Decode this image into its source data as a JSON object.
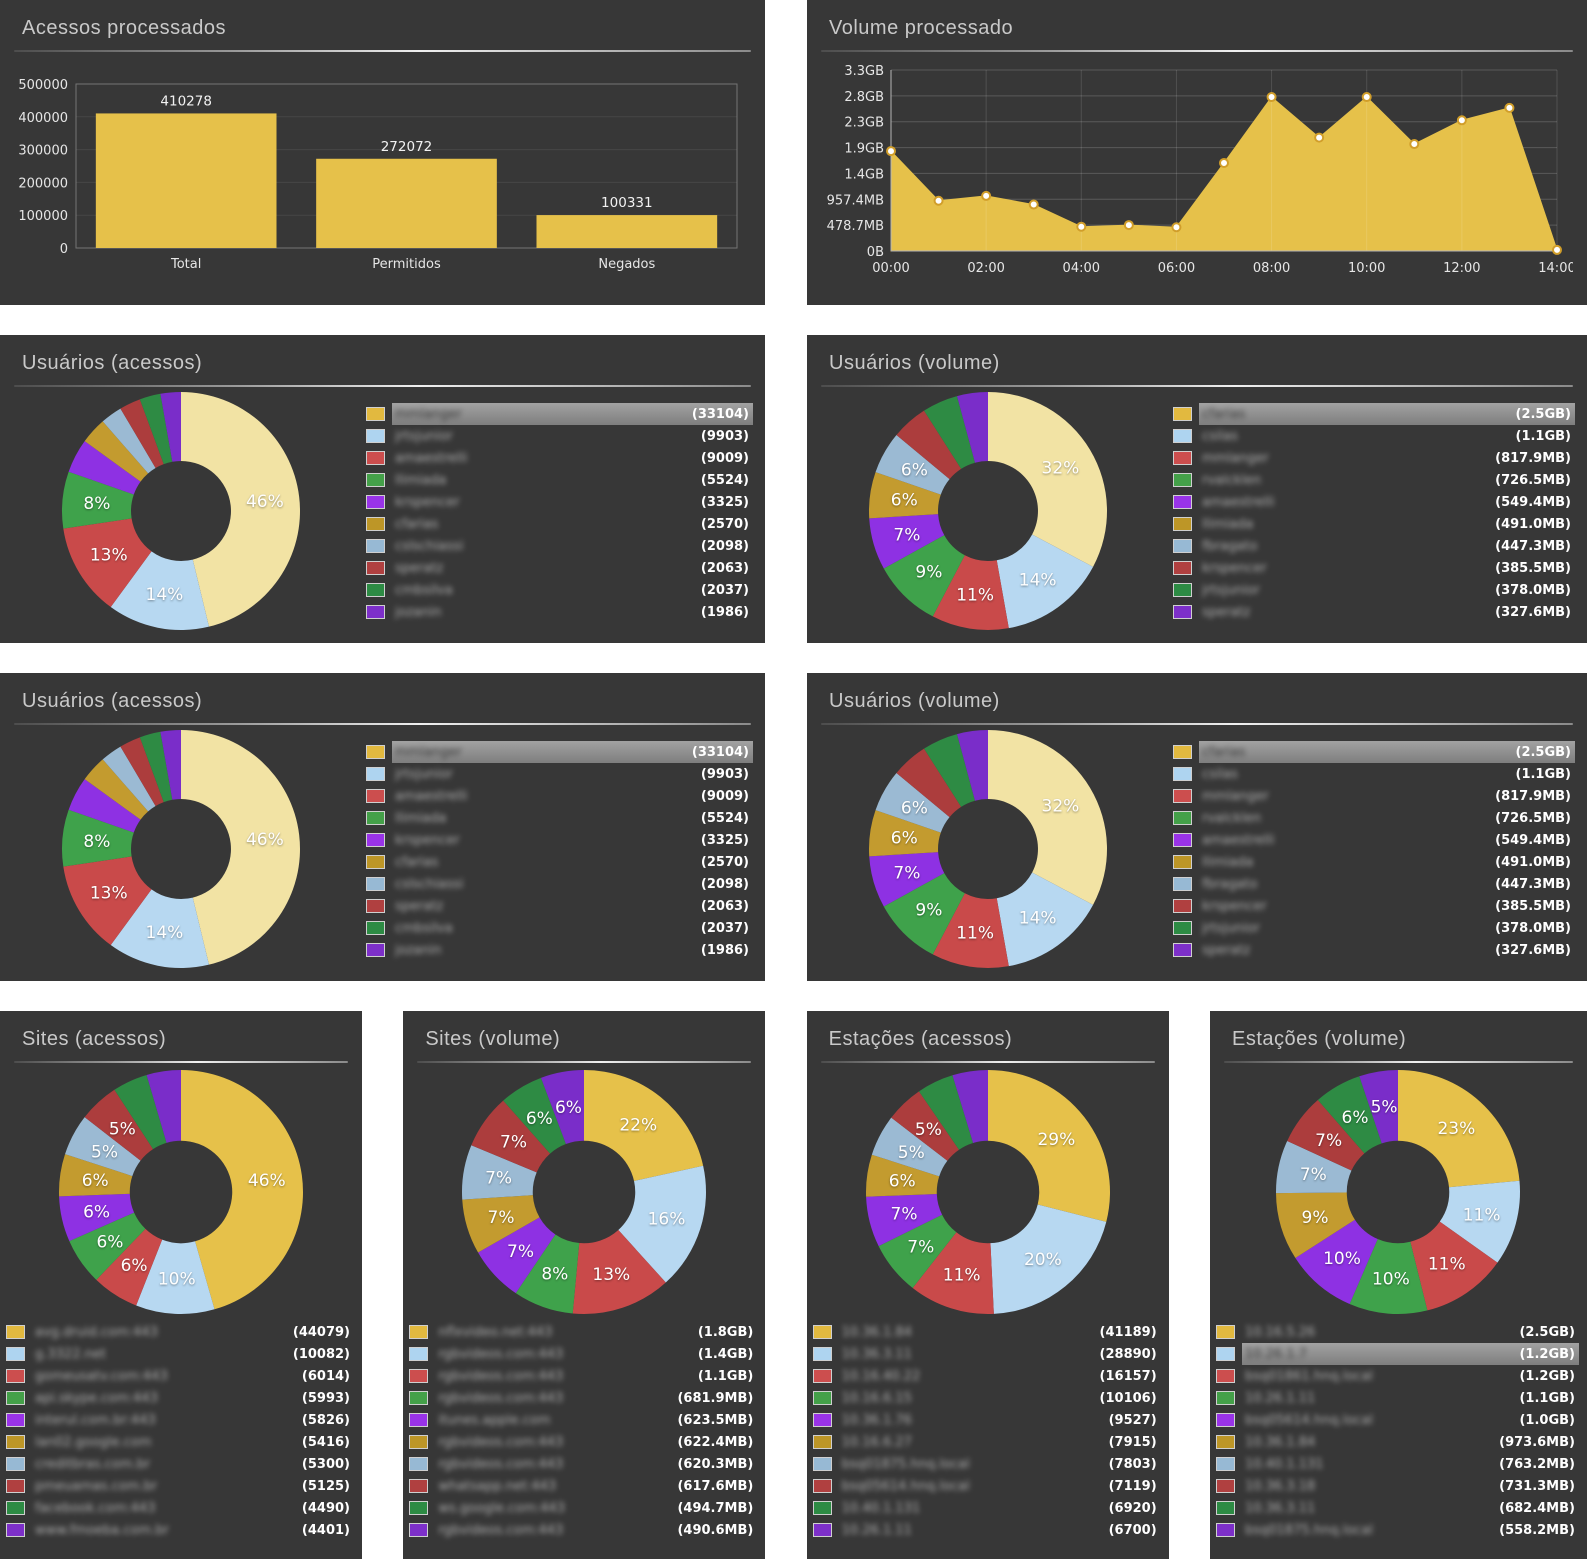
{
  "colors": {
    "page_bg": "#ffffff",
    "panel_bg": "#373737",
    "accent_yellow": "#e6c14a",
    "highlight_row_bg": "#8f8f8f",
    "swatch_palette": [
      "#e2b93f",
      "#aed4f0",
      "#cc4e4e",
      "#44a049",
      "#9933e8",
      "#bd9627",
      "#97b9d4",
      "#b04040",
      "#2d8b44",
      "#7d2fc9"
    ]
  },
  "panels": [
    {
      "title": "Acessos processados",
      "chart": "acessos_bar"
    },
    {
      "title": "Volume processado",
      "chart": "volume_area"
    },
    {
      "title": "Usuários (acessos)",
      "chart": "usuarios_acessos"
    },
    {
      "title": "Usuários (volume)",
      "chart": "usuarios_volume"
    },
    {
      "title": "Usuários (acessos)",
      "chart": "usuarios_acessos"
    },
    {
      "title": "Usuários (volume)",
      "chart": "usuarios_volume"
    },
    {
      "title": "Sites (acessos)",
      "chart": "sites_acessos"
    },
    {
      "title": "Sites (volume)",
      "chart": "sites_volume"
    },
    {
      "title": "Estações (acessos)",
      "chart": "estacoes_acessos"
    },
    {
      "title": "Estações (volume)",
      "chart": "estacoes_volume"
    }
  ],
  "chart_data": {
    "acessos_bar": {
      "type": "bar",
      "title": "Acessos processados",
      "categories": [
        "Total",
        "Permitidos",
        "Negados"
      ],
      "values": [
        410278,
        272072,
        100331
      ],
      "value_labels": [
        "410278",
        "272072",
        "100331"
      ],
      "ylim": [
        0,
        500000
      ],
      "yticks": [
        0,
        100000,
        200000,
        300000,
        400000,
        500000
      ],
      "grid": true,
      "bar_color": "#e6c14a"
    },
    "volume_area": {
      "type": "area",
      "title": "Volume processado",
      "x_hours": [
        0,
        1,
        2,
        3,
        4,
        5,
        6,
        7,
        8,
        9,
        10,
        11,
        12,
        13,
        14
      ],
      "values_mb": [
        1850,
        930,
        1020,
        860,
        450,
        480,
        440,
        1630,
        2850,
        2100,
        2850,
        1980,
        2420,
        2650,
        20
      ],
      "ytick_labels": [
        "0B",
        "478.7MB",
        "957.4MB",
        "1.4GB",
        "1.9GB",
        "2.3GB",
        "2.8GB",
        "3.3GB"
      ],
      "ytick_values_mb": [
        0,
        478.7,
        957.4,
        1436.1,
        1914.8,
        2393.5,
        2872.2,
        3350.9
      ],
      "xtick_labels": [
        "00:00",
        "02:00",
        "04:00",
        "06:00",
        "08:00",
        "10:00",
        "12:00",
        "14:00"
      ],
      "xtick_hours": [
        0,
        2,
        4,
        6,
        8,
        10,
        12,
        14
      ],
      "area_color": "#e6c14a",
      "marker_fill": "#ffffff",
      "marker_stroke": "#d19e2a",
      "grid": true
    },
    "usuarios_acessos": {
      "type": "donut",
      "values": [
        33104,
        9903,
        9009,
        5524,
        3325,
        2570,
        2098,
        2063,
        2037,
        1986
      ],
      "slice_labels": [
        "46%",
        "14%",
        "13%",
        "8%",
        "",
        "",
        "",
        "",
        "",
        ""
      ],
      "colors": [
        "#f2e3a4",
        "#b7d8f1",
        "#c94a4a",
        "#3fa24b",
        "#8e31e3",
        "#c39b2f",
        "#9bbad3",
        "#ac3d3d",
        "#2e8b44",
        "#7a2dc9"
      ],
      "highlight_row": 0,
      "legend": [
        {
          "name": "mmlanger",
          "value": "(33104)"
        },
        {
          "name": "jrtsjunior",
          "value": "(9903)"
        },
        {
          "name": "amaestrelli",
          "value": "(9009)"
        },
        {
          "name": "llimiada",
          "value": "(5524)"
        },
        {
          "name": "krspencer",
          "value": "(3325)"
        },
        {
          "name": "cfarias",
          "value": "(2570)"
        },
        {
          "name": "cslschiassi",
          "value": "(2098)"
        },
        {
          "name": "speratz",
          "value": "(2063)"
        },
        {
          "name": "cmbsilva",
          "value": "(2037)"
        },
        {
          "name": "jozanin",
          "value": "(1986)"
        }
      ]
    },
    "usuarios_volume": {
      "type": "donut",
      "values": [
        2560,
        1126.4,
        817.9,
        726.5,
        549.4,
        491.0,
        447.3,
        385.5,
        378.0,
        327.6
      ],
      "slice_labels": [
        "32%",
        "14%",
        "11%",
        "9%",
        "7%",
        "6%",
        "6%",
        "",
        "",
        ""
      ],
      "colors": [
        "#f2e3a4",
        "#b7d8f1",
        "#c94a4a",
        "#3fa24b",
        "#8e31e3",
        "#c39b2f",
        "#9bbad3",
        "#ac3d3d",
        "#2e8b44",
        "#7a2dc9"
      ],
      "highlight_row": 0,
      "legend": [
        {
          "name": "cfarias",
          "value": "(2.5GB)"
        },
        {
          "name": "csilas",
          "value": "(1.1GB)"
        },
        {
          "name": "mmlanger",
          "value": "(817.9MB)"
        },
        {
          "name": "rvalcklen",
          "value": "(726.5MB)"
        },
        {
          "name": "amaestrelli",
          "value": "(549.4MB)"
        },
        {
          "name": "llimiada",
          "value": "(491.0MB)"
        },
        {
          "name": "fbragato",
          "value": "(447.3MB)"
        },
        {
          "name": "krspencer",
          "value": "(385.5MB)"
        },
        {
          "name": "jrtsjunior",
          "value": "(378.0MB)"
        },
        {
          "name": "speratz",
          "value": "(327.6MB)"
        }
      ]
    },
    "sites_acessos": {
      "type": "donut",
      "values": [
        44079,
        10082,
        6014,
        5993,
        5826,
        5416,
        5300,
        5125,
        4490,
        4401
      ],
      "slice_labels": [
        "46%",
        "10%",
        "6%",
        "6%",
        "6%",
        "6%",
        "5%",
        "5%",
        "",
        ""
      ],
      "colors": [
        "#e6c14a",
        "#b7d8f1",
        "#c94a4a",
        "#3fa24b",
        "#8e31e3",
        "#c39b2f",
        "#9bbad3",
        "#ac3d3d",
        "#2e8b44",
        "#7a2dc9"
      ],
      "highlight_row": null,
      "legend": [
        {
          "name": "avg.druid.com:443",
          "value": "(44079)"
        },
        {
          "name": "g.3322.net",
          "value": "(10082)"
        },
        {
          "name": "gomeusatv.com:443",
          "value": "(6014)"
        },
        {
          "name": "api.skype.com:443",
          "value": "(5993)"
        },
        {
          "name": "interul.com.br:443",
          "value": "(5826)"
        },
        {
          "name": "lan02.google.com",
          "value": "(5416)"
        },
        {
          "name": "creditbras.com.br",
          "value": "(5300)"
        },
        {
          "name": "pmeuamas.com.br",
          "value": "(5125)"
        },
        {
          "name": "facebook.com:443",
          "value": "(4490)"
        },
        {
          "name": "www.fmoeba.com.br",
          "value": "(4401)"
        }
      ]
    },
    "sites_volume": {
      "type": "donut",
      "values": [
        1843.2,
        1433.6,
        1126.4,
        681.9,
        623.5,
        622.4,
        620.3,
        617.6,
        494.7,
        490.6
      ],
      "slice_labels": [
        "22%",
        "16%",
        "13%",
        "8%",
        "7%",
        "7%",
        "7%",
        "7%",
        "6%",
        "6%"
      ],
      "colors": [
        "#e6c14a",
        "#b7d8f1",
        "#c94a4a",
        "#3fa24b",
        "#8e31e3",
        "#c39b2f",
        "#9bbad3",
        "#ac3d3d",
        "#2e8b44",
        "#7a2dc9"
      ],
      "highlight_row": null,
      "legend": [
        {
          "name": "nflxvideo.net:443",
          "value": "(1.8GB)"
        },
        {
          "name": "rgbvideos.com:443",
          "value": "(1.4GB)"
        },
        {
          "name": "rgbvideos.com:443",
          "value": "(1.1GB)"
        },
        {
          "name": "rgbvideos.com:443",
          "value": "(681.9MB)"
        },
        {
          "name": "itunes.apple.com",
          "value": "(623.5MB)"
        },
        {
          "name": "rgbvideos.com:443",
          "value": "(622.4MB)"
        },
        {
          "name": "rgbvideos.com:443",
          "value": "(620.3MB)"
        },
        {
          "name": "whatsapp.net:443",
          "value": "(617.6MB)"
        },
        {
          "name": "ws.google.com:443",
          "value": "(494.7MB)"
        },
        {
          "name": "rgbvideos.com:443",
          "value": "(490.6MB)"
        }
      ]
    },
    "estacoes_acessos": {
      "type": "donut",
      "values": [
        41189,
        28890,
        16157,
        10106,
        9527,
        7915,
        7803,
        7119,
        6920,
        6700
      ],
      "slice_labels": [
        "29%",
        "20%",
        "11%",
        "7%",
        "7%",
        "6%",
        "5%",
        "5%",
        "",
        ""
      ],
      "colors": [
        "#e6c14a",
        "#b7d8f1",
        "#c94a4a",
        "#3fa24b",
        "#8e31e3",
        "#c39b2f",
        "#9bbad3",
        "#ac3d3d",
        "#2e8b44",
        "#7a2dc9"
      ],
      "highlight_row": null,
      "legend": [
        {
          "name": "10.36.1.84",
          "value": "(41189)"
        },
        {
          "name": "10.36.3.11",
          "value": "(28890)"
        },
        {
          "name": "10.16.40.22",
          "value": "(16157)"
        },
        {
          "name": "10.16.6.15",
          "value": "(10106)"
        },
        {
          "name": "10.36.1.76",
          "value": "(9527)"
        },
        {
          "name": "10.16.6.27",
          "value": "(7915)"
        },
        {
          "name": "bsq01875.hnq.local",
          "value": "(7803)"
        },
        {
          "name": "bsq05614.hnq.local",
          "value": "(7119)"
        },
        {
          "name": "10.40.1.131",
          "value": "(6920)"
        },
        {
          "name": "10.26.1.11",
          "value": "(6700)"
        }
      ]
    },
    "estacoes_volume": {
      "type": "donut",
      "values": [
        2560,
        1228.8,
        1228.8,
        1126.4,
        1024,
        973.6,
        763.2,
        731.3,
        682.4,
        558.2
      ],
      "slice_labels": [
        "23%",
        "11%",
        "11%",
        "10%",
        "10%",
        "9%",
        "7%",
        "7%",
        "6%",
        "5%"
      ],
      "colors": [
        "#e6c14a",
        "#b7d8f1",
        "#c94a4a",
        "#3fa24b",
        "#8e31e3",
        "#c39b2f",
        "#9bbad3",
        "#ac3d3d",
        "#2e8b44",
        "#7a2dc9"
      ],
      "highlight_row": 1,
      "legend": [
        {
          "name": "10.16.5.26",
          "value": "(2.5GB)"
        },
        {
          "name": "10.26.1.7",
          "value": "(1.2GB)"
        },
        {
          "name": "bsq01861.hnq.local",
          "value": "(1.2GB)"
        },
        {
          "name": "10.26.1.11",
          "value": "(1.1GB)"
        },
        {
          "name": "bsq05614.hnq.local",
          "value": "(1.0GB)"
        },
        {
          "name": "10.36.1.84",
          "value": "(973.6MB)"
        },
        {
          "name": "10.40.1.131",
          "value": "(763.2MB)"
        },
        {
          "name": "10.36.3.18",
          "value": "(731.3MB)"
        },
        {
          "name": "10.36.3.11",
          "value": "(682.4MB)"
        },
        {
          "name": "bsq01875.hnq.local",
          "value": "(558.2MB)"
        }
      ]
    }
  }
}
